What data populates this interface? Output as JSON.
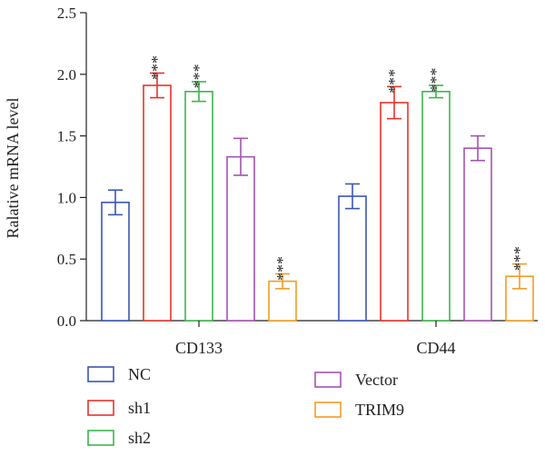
{
  "chart_data": {
    "type": "bar",
    "title": "",
    "xlabel": "",
    "ylabel": "Ralative mRNA level",
    "ylim": [
      0,
      2.5
    ],
    "yticks": [
      "0.0",
      "0.5",
      "1.0",
      "1.5",
      "2.0",
      "2.5"
    ],
    "categories": [
      "CD133",
      "CD44"
    ],
    "grid": false,
    "legend_position": "bottom",
    "significance_label": "***",
    "series": [
      {
        "name": "NC",
        "color": "#3a55b4",
        "values": [
          0.96,
          1.01
        ],
        "errors": [
          0.1,
          0.1
        ],
        "significant": [
          false,
          false
        ]
      },
      {
        "name": "sh1",
        "color": "#e8332a",
        "values": [
          1.91,
          1.77
        ],
        "errors": [
          0.1,
          0.13
        ],
        "significant": [
          true,
          true
        ]
      },
      {
        "name": "sh2",
        "color": "#3cb54a",
        "values": [
          1.86,
          1.86
        ],
        "errors": [
          0.08,
          0.05
        ],
        "significant": [
          true,
          true
        ]
      },
      {
        "name": "Vector",
        "color": "#a453b0",
        "values": [
          1.33,
          1.4
        ],
        "errors": [
          0.15,
          0.1
        ],
        "significant": [
          false,
          false
        ]
      },
      {
        "name": "TRIM9",
        "color": "#f39c26",
        "values": [
          0.32,
          0.36
        ],
        "errors": [
          0.06,
          0.1
        ],
        "significant": [
          true,
          true
        ]
      }
    ]
  }
}
